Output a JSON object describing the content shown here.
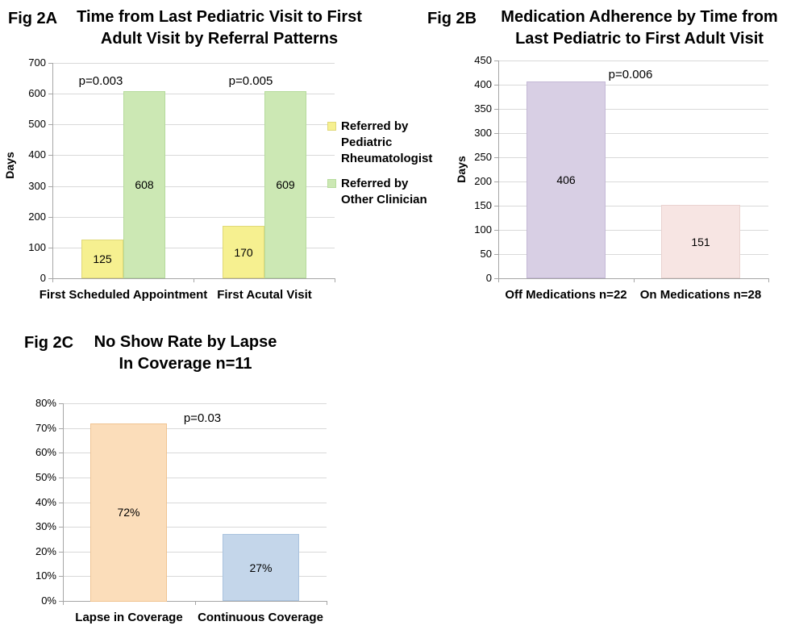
{
  "chart_data": [
    {
      "type": "bar",
      "fig_label": "Fig 2A",
      "title_lines": [
        "Time from Last Pediatric Visit to First",
        "Adult Visit by Referral Patterns"
      ],
      "ylabel": "Days",
      "ylim": [
        0,
        700
      ],
      "yticks": [
        0,
        100,
        200,
        300,
        400,
        500,
        600,
        700
      ],
      "ytick_labels": [
        "0",
        "100",
        "200",
        "300",
        "400",
        "500",
        "600",
        "700"
      ],
      "categories": [
        "First Scheduled Appointment",
        "First Acutal Visit"
      ],
      "series": [
        {
          "name": "Referred by Pediatric Rheumatologist",
          "values": [
            125,
            170
          ],
          "labels": [
            "125",
            "170"
          ],
          "color": "#F6F090",
          "border_color": "#E0D878"
        },
        {
          "name": "Referred by Other Clinician",
          "values": [
            608,
            609
          ],
          "labels": [
            "608",
            "609"
          ],
          "color": "#CCE8B4",
          "border_color": "#B6DB9C"
        }
      ],
      "annotations": [
        "p=0.003",
        "p=0.005"
      ],
      "legend_position": "right",
      "grid": true
    },
    {
      "type": "bar",
      "fig_label": "Fig 2B",
      "title_lines": [
        "Medication Adherence by Time from",
        "Last Pediatric to First Adult Visit"
      ],
      "ylabel": "Days",
      "ylim": [
        0,
        450
      ],
      "yticks": [
        0,
        50,
        100,
        150,
        200,
        250,
        300,
        350,
        400,
        450
      ],
      "ytick_labels": [
        "0",
        "50",
        "100",
        "150",
        "200",
        "250",
        "300",
        "350",
        "400",
        "450"
      ],
      "categories": [
        "Off Medications n=22",
        "On Medications n=28"
      ],
      "values": [
        406,
        151
      ],
      "labels": [
        "406",
        "151"
      ],
      "colors": [
        "#D8CFE4",
        "#F7E5E3"
      ],
      "border_colors": [
        "#C4B8D6",
        "#EAD3D0"
      ],
      "annotations": [
        "p=0.006"
      ],
      "legend_position": "none",
      "grid": true
    },
    {
      "type": "bar",
      "fig_label": "Fig 2C",
      "title_lines": [
        "No Show Rate by Lapse",
        "In Coverage n=11"
      ],
      "ylabel": "",
      "ylim": [
        0,
        80
      ],
      "yticks": [
        0,
        10,
        20,
        30,
        40,
        50,
        60,
        70,
        80
      ],
      "ytick_labels": [
        "0%",
        "10%",
        "20%",
        "30%",
        "40%",
        "50%",
        "60%",
        "70%",
        "80%"
      ],
      "categories": [
        "Lapse in Coverage",
        "Continuous Coverage"
      ],
      "values": [
        72,
        27
      ],
      "labels": [
        "72%",
        "27%"
      ],
      "colors": [
        "#FBDDBA",
        "#C4D6EA"
      ],
      "border_colors": [
        "#F0C492",
        "#A9C2DE"
      ],
      "annotations": [
        "p=0.03"
      ],
      "legend_position": "none",
      "grid": true
    }
  ],
  "colors": {
    "gridline": "#D9D9D9",
    "axis": "#A6A6A6",
    "text": "#000000",
    "background": "#FFFFFF"
  }
}
